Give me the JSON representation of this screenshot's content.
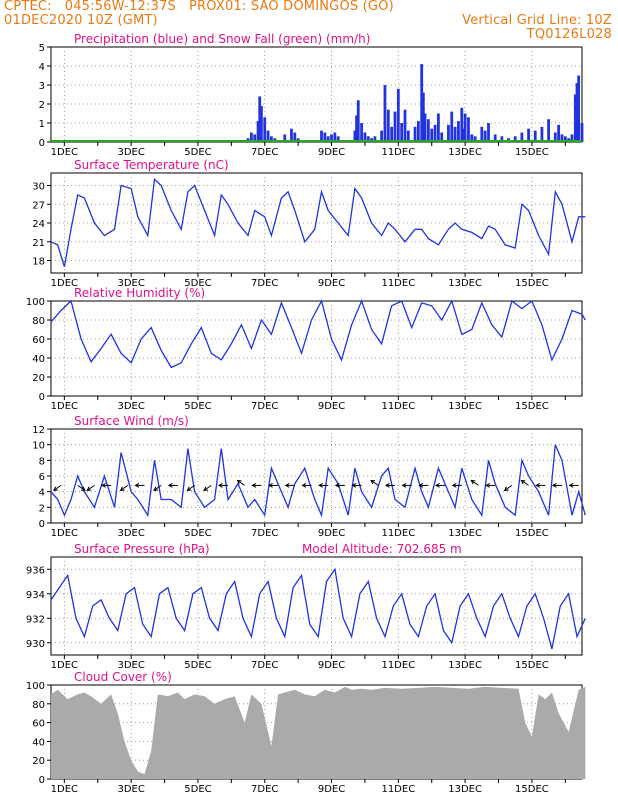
{
  "header": {
    "line1_left": "CPTEC:   045:56W-12:37S   PROX01: SAO DOMINGOS (GO)",
    "line2_left": "01DEC2020 10Z (GMT)",
    "line2_right": "Vertical Grid Line: 10Z",
    "line3_right": "TQ0126L028"
  },
  "colors": {
    "header": "#e87a14",
    "title": "#dd1188",
    "line": "#2233dd",
    "snow": "#22aa22",
    "cloud": "#aaaaaa",
    "grid": "#888888"
  },
  "chart_data": [
    {
      "id": "precip",
      "type": "bar",
      "title": "Precipitation (blue) and Snow Fall (green) (mm/h)",
      "x_ticks": [
        "1DEC",
        "3DEC",
        "5DEC",
        "7DEC",
        "9DEC",
        "11DEC",
        "13DEC",
        "15DEC"
      ],
      "yticks": [
        0,
        1,
        2,
        3,
        4,
        5
      ],
      "ylim": [
        0,
        5
      ],
      "grid": true,
      "series": [
        {
          "name": "Precipitation",
          "color": "#2233dd",
          "x": [
            5.9,
            6.0,
            6.1,
            6.2,
            6.25,
            6.3,
            6.4,
            6.5,
            6.6,
            6.7,
            7.0,
            7.2,
            7.3,
            7.4,
            8.1,
            8.2,
            8.3,
            8.4,
            8.5,
            8.6,
            9.1,
            9.15,
            9.2,
            9.3,
            9.4,
            9.5,
            9.6,
            9.7,
            9.9,
            10.0,
            10.1,
            10.2,
            10.3,
            10.4,
            10.5,
            10.6,
            10.7,
            10.9,
            11.0,
            11.1,
            11.15,
            11.2,
            11.3,
            11.4,
            11.5,
            11.6,
            11.7,
            11.9,
            12.0,
            12.1,
            12.2,
            12.3,
            12.35,
            12.4,
            12.5,
            12.6,
            12.7,
            12.9,
            13.0,
            13.1,
            13.3,
            13.5,
            13.7,
            13.9,
            14.1,
            14.3,
            14.5,
            14.7,
            14.9,
            15.1,
            15.2,
            15.3,
            15.4,
            15.5,
            15.6,
            15.7,
            15.75,
            15.8,
            15.9
          ],
          "values": [
            0.2,
            0.5,
            0.4,
            1.1,
            2.4,
            1.9,
            1.3,
            0.6,
            0.3,
            0.2,
            0.4,
            0.7,
            0.5,
            0.2,
            0.6,
            0.5,
            0.3,
            0.4,
            0.5,
            0.3,
            0.6,
            1.4,
            2.2,
            1.0,
            0.5,
            0.3,
            0.2,
            0.3,
            0.6,
            3.0,
            1.7,
            0.8,
            1.6,
            2.8,
            1.0,
            1.7,
            0.6,
            0.8,
            1.1,
            4.1,
            2.6,
            1.5,
            1.2,
            0.7,
            0.9,
            1.5,
            0.5,
            0.9,
            1.6,
            0.8,
            1.1,
            1.8,
            0.7,
            1.5,
            1.3,
            0.4,
            0.3,
            0.8,
            0.6,
            1.0,
            0.4,
            0.3,
            0.2,
            0.3,
            0.5,
            0.7,
            0.6,
            0.8,
            1.2,
            0.5,
            0.9,
            0.4,
            0.3,
            0.2,
            0.4,
            2.5,
            3.1,
            3.5,
            1.0
          ]
        },
        {
          "name": "Snow Fall",
          "color": "#22aa22",
          "x": [
            0,
            15.9
          ],
          "values": [
            0,
            0
          ]
        }
      ]
    },
    {
      "id": "temp",
      "type": "line",
      "title": "Surface Temperature (nC)",
      "x_ticks": [
        "1DEC",
        "3DEC",
        "5DEC",
        "7DEC",
        "9DEC",
        "11DEC",
        "13DEC",
        "15DEC"
      ],
      "yticks": [
        18,
        21,
        24,
        27,
        30
      ],
      "ylim": [
        16,
        32
      ],
      "grid": true,
      "series": [
        {
          "color": "#2233dd",
          "x": [
            0,
            0.2,
            0.4,
            0.6,
            0.8,
            1.0,
            1.3,
            1.6,
            1.9,
            2.1,
            2.4,
            2.6,
            2.9,
            3.1,
            3.3,
            3.6,
            3.9,
            4.1,
            4.3,
            4.6,
            4.9,
            5.1,
            5.3,
            5.6,
            5.9,
            6.1,
            6.4,
            6.6,
            6.9,
            7.1,
            7.3,
            7.6,
            7.9,
            8.1,
            8.3,
            8.6,
            8.9,
            9.1,
            9.3,
            9.6,
            9.9,
            10.1,
            10.3,
            10.6,
            10.9,
            11.1,
            11.3,
            11.6,
            11.9,
            12.1,
            12.3,
            12.6,
            12.9,
            13.1,
            13.3,
            13.6,
            13.9,
            14.1,
            14.3,
            14.6,
            14.9,
            15.1,
            15.3,
            15.6,
            15.8,
            16.0
          ],
          "values": [
            21,
            20.5,
            17,
            23,
            28.5,
            28,
            24,
            22,
            23,
            30,
            29.5,
            25,
            22,
            31,
            30,
            26,
            23,
            29,
            30,
            26,
            22,
            28.5,
            27,
            24,
            22,
            26,
            25,
            22,
            28,
            29,
            26,
            21,
            23,
            29,
            26,
            24,
            22,
            29.5,
            28,
            24,
            22,
            24,
            23,
            21,
            23,
            23,
            21.5,
            20.5,
            23,
            24,
            23,
            22.5,
            21.5,
            23.5,
            23,
            20.5,
            20,
            27,
            26,
            22,
            19,
            29,
            27,
            21,
            25,
            25
          ]
        }
      ]
    },
    {
      "id": "rh",
      "type": "line",
      "title": "Relative Humidity (%)",
      "x_ticks": [
        "1DEC",
        "3DEC",
        "5DEC",
        "7DEC",
        "9DEC",
        "11DEC",
        "13DEC",
        "15DEC"
      ],
      "yticks": [
        0,
        20,
        40,
        60,
        80,
        100
      ],
      "ylim": [
        0,
        100
      ],
      "grid": true,
      "series": [
        {
          "color": "#2233dd",
          "x": [
            0,
            0.3,
            0.6,
            0.9,
            1.2,
            1.5,
            1.8,
            2.1,
            2.4,
            2.7,
            3.0,
            3.3,
            3.6,
            3.9,
            4.2,
            4.5,
            4.8,
            5.1,
            5.4,
            5.7,
            6.0,
            6.3,
            6.6,
            6.9,
            7.2,
            7.5,
            7.8,
            8.1,
            8.4,
            8.7,
            9.0,
            9.3,
            9.6,
            9.9,
            10.2,
            10.5,
            10.8,
            11.1,
            11.4,
            11.7,
            12.0,
            12.3,
            12.6,
            12.9,
            13.2,
            13.5,
            13.8,
            14.1,
            14.4,
            14.7,
            15.0,
            15.3,
            15.6,
            15.9,
            16.0
          ],
          "values": [
            78,
            90,
            100,
            60,
            36,
            50,
            65,
            45,
            35,
            60,
            72,
            48,
            30,
            35,
            55,
            72,
            45,
            38,
            55,
            75,
            50,
            80,
            65,
            98,
            72,
            45,
            80,
            100,
            60,
            38,
            75,
            100,
            70,
            55,
            95,
            100,
            72,
            98,
            95,
            80,
            100,
            65,
            70,
            98,
            75,
            62,
            100,
            92,
            100,
            75,
            38,
            60,
            90,
            86,
            80
          ]
        }
      ]
    },
    {
      "id": "wind",
      "type": "line",
      "title": "Surface Wind (m/s)",
      "x_ticks": [
        "1DEC",
        "3DEC",
        "5DEC",
        "7DEC",
        "9DEC",
        "11DEC",
        "13DEC",
        "15DEC"
      ],
      "yticks": [
        0,
        2,
        4,
        6,
        8,
        10,
        12
      ],
      "ylim": [
        0,
        12
      ],
      "grid": true,
      "series": [
        {
          "color": "#2233dd",
          "x": [
            0,
            0.2,
            0.4,
            0.6,
            0.8,
            1.0,
            1.3,
            1.6,
            1.9,
            2.1,
            2.4,
            2.6,
            2.9,
            3.1,
            3.3,
            3.6,
            3.9,
            4.1,
            4.3,
            4.6,
            4.9,
            5.1,
            5.3,
            5.6,
            5.9,
            6.1,
            6.4,
            6.6,
            6.9,
            7.1,
            7.3,
            7.6,
            7.9,
            8.1,
            8.3,
            8.6,
            8.9,
            9.1,
            9.3,
            9.6,
            9.9,
            10.1,
            10.3,
            10.6,
            10.9,
            11.1,
            11.3,
            11.6,
            11.9,
            12.1,
            12.3,
            12.6,
            12.9,
            13.1,
            13.3,
            13.6,
            13.9,
            14.1,
            14.3,
            14.6,
            14.9,
            15.1,
            15.3,
            15.6,
            15.8,
            16.0
          ],
          "values": [
            4,
            3,
            1,
            3,
            6,
            4,
            2,
            6,
            2,
            9,
            4,
            3,
            1,
            8,
            3,
            3,
            2,
            9.5,
            4,
            2,
            3,
            9.5,
            3,
            5,
            2,
            3,
            1,
            7,
            4,
            2,
            5,
            7,
            3,
            1,
            7,
            5,
            1,
            7,
            4,
            2,
            6,
            7,
            3,
            2,
            7,
            4,
            2,
            7,
            4,
            2,
            7,
            3,
            1,
            8,
            5,
            2,
            1,
            8,
            6,
            4,
            1,
            10,
            8,
            1,
            4,
            1
          ]
        }
      ],
      "wind_arrows": [
        {
          "day": 0.3,
          "dir": "left-down"
        },
        {
          "day": 0.8,
          "dir": "right-down"
        },
        {
          "day": 1.3,
          "dir": "left-down"
        },
        {
          "day": 1.8,
          "dir": "left"
        },
        {
          "day": 2.3,
          "dir": "left-down"
        },
        {
          "day": 2.8,
          "dir": "left"
        },
        {
          "day": 3.3,
          "dir": "left-down"
        },
        {
          "day": 3.8,
          "dir": "left"
        },
        {
          "day": 4.3,
          "dir": "left-down"
        },
        {
          "day": 4.8,
          "dir": "left-down"
        },
        {
          "day": 5.3,
          "dir": "left"
        },
        {
          "day": 5.8,
          "dir": "left-up"
        },
        {
          "day": 6.3,
          "dir": "left"
        },
        {
          "day": 6.8,
          "dir": "left"
        },
        {
          "day": 7.3,
          "dir": "left"
        },
        {
          "day": 7.8,
          "dir": "left"
        },
        {
          "day": 8.3,
          "dir": "left"
        },
        {
          "day": 8.8,
          "dir": "left"
        },
        {
          "day": 9.3,
          "dir": "left"
        },
        {
          "day": 9.8,
          "dir": "left-up"
        },
        {
          "day": 10.3,
          "dir": "left"
        },
        {
          "day": 10.8,
          "dir": "left"
        },
        {
          "day": 11.3,
          "dir": "left"
        },
        {
          "day": 11.8,
          "dir": "left"
        },
        {
          "day": 12.3,
          "dir": "left"
        },
        {
          "day": 12.8,
          "dir": "left-up"
        },
        {
          "day": 13.3,
          "dir": "left"
        },
        {
          "day": 13.8,
          "dir": "left-down"
        },
        {
          "day": 14.3,
          "dir": "left-up"
        },
        {
          "day": 14.8,
          "dir": "left"
        },
        {
          "day": 15.3,
          "dir": "left"
        },
        {
          "day": 15.8,
          "dir": "left"
        }
      ]
    },
    {
      "id": "pres",
      "type": "line",
      "title": "Surface Pressure (hPa)",
      "extra_label": "Model Altitude: 702.685  m",
      "x_ticks": [
        "1DEC",
        "3DEC",
        "5DEC",
        "7DEC",
        "9DEC",
        "11DEC",
        "13DEC",
        "15DEC"
      ],
      "yticks": [
        930,
        932,
        934,
        936
      ],
      "ylim": [
        929,
        937
      ],
      "grid": true,
      "series": [
        {
          "color": "#2233dd",
          "x": [
            0,
            0.25,
            0.5,
            0.75,
            1.0,
            1.25,
            1.5,
            1.75,
            2.0,
            2.25,
            2.5,
            2.75,
            3.0,
            3.25,
            3.5,
            3.75,
            4.0,
            4.25,
            4.5,
            4.75,
            5.0,
            5.25,
            5.5,
            5.75,
            6.0,
            6.25,
            6.5,
            6.75,
            7.0,
            7.25,
            7.5,
            7.75,
            8.0,
            8.25,
            8.5,
            8.75,
            9.0,
            9.25,
            9.5,
            9.75,
            10.0,
            10.25,
            10.5,
            10.75,
            11.0,
            11.25,
            11.5,
            11.75,
            12.0,
            12.25,
            12.5,
            12.75,
            13.0,
            13.25,
            13.5,
            13.75,
            14.0,
            14.25,
            14.5,
            14.75,
            15.0,
            15.25,
            15.5,
            15.75,
            16.0
          ],
          "values": [
            933.5,
            934.5,
            935.5,
            932,
            930.5,
            933,
            933.5,
            932,
            931,
            934,
            934.5,
            931.5,
            930.5,
            934,
            934.5,
            932,
            931,
            934,
            934.5,
            932,
            931,
            934,
            935,
            932,
            930.5,
            934,
            935,
            932,
            930.5,
            934.5,
            935.5,
            931.5,
            930.5,
            935,
            936,
            932,
            930.5,
            934,
            935,
            932,
            930.5,
            933,
            934,
            931.5,
            930.5,
            933,
            934,
            931,
            930,
            933,
            934,
            932,
            930.5,
            933,
            934,
            932,
            930.5,
            933,
            934,
            932,
            929.5,
            933,
            934,
            930.5,
            932
          ]
        }
      ]
    },
    {
      "id": "cloud",
      "type": "area",
      "title": "Cloud Cover (%)",
      "x_ticks": [
        "1DEC",
        "3DEC",
        "5DEC",
        "7DEC",
        "9DEC",
        "11DEC",
        "13DEC",
        "15DEC"
      ],
      "yticks": [
        0,
        20,
        40,
        60,
        80,
        100
      ],
      "ylim": [
        0,
        100
      ],
      "grid": true,
      "series": [
        {
          "color": "#aaaaaa",
          "x": [
            0,
            0.2,
            0.5,
            0.8,
            1.0,
            1.2,
            1.5,
            1.8,
            2.0,
            2.2,
            2.4,
            2.6,
            2.8,
            3.0,
            3.2,
            3.5,
            3.8,
            4.0,
            4.3,
            4.6,
            4.9,
            5.2,
            5.5,
            5.8,
            6.0,
            6.3,
            6.5,
            6.6,
            6.8,
            7.0,
            7.3,
            7.6,
            7.9,
            8.2,
            8.5,
            8.8,
            9.0,
            9.3,
            9.6,
            10.0,
            10.5,
            11.0,
            11.5,
            12.0,
            12.5,
            13.0,
            13.5,
            14.0,
            14.2,
            14.4,
            14.6,
            14.8,
            15.0,
            15.2,
            15.5,
            15.8,
            16.0
          ],
          "values": [
            90,
            95,
            85,
            90,
            92,
            88,
            80,
            90,
            70,
            40,
            20,
            8,
            5,
            30,
            90,
            88,
            92,
            85,
            90,
            88,
            80,
            85,
            88,
            60,
            90,
            80,
            50,
            35,
            90,
            92,
            95,
            90,
            88,
            95,
            92,
            98,
            95,
            96,
            95,
            97,
            96,
            97,
            98,
            97,
            96,
            98,
            97,
            96,
            60,
            45,
            90,
            85,
            92,
            70,
            50,
            95,
            98
          ]
        }
      ]
    }
  ]
}
